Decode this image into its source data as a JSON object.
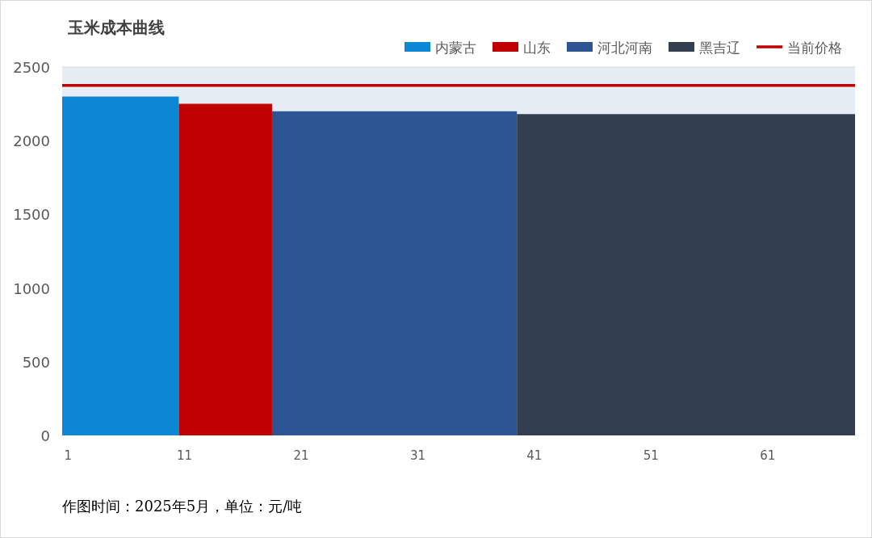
{
  "chart_data": {
    "type": "area",
    "title": "玉米成本曲线",
    "xlim": [
      0.5,
      68.5
    ],
    "xticks": [
      1,
      11,
      21,
      31,
      41,
      51,
      61
    ],
    "ylim": [
      0,
      2500
    ],
    "yticks": [
      0,
      500,
      1000,
      1500,
      2000,
      2500
    ],
    "legend": "top right",
    "grid": false,
    "series": [
      {
        "name": "内蒙古",
        "color": "#0b87d6",
        "x": [
          0.5,
          10.5
        ],
        "values": [
          2300,
          2300
        ]
      },
      {
        "name": "山东",
        "color": "#c00000",
        "x": [
          10.5,
          18.5
        ],
        "values": [
          2250,
          2250
        ]
      },
      {
        "name": "河北河南",
        "color": "#2e5593",
        "x": [
          18.5,
          39.5
        ],
        "values": [
          2200,
          2200
        ]
      },
      {
        "name": "黑吉辽",
        "color": "#333f50",
        "x": [
          39.5,
          68.5
        ],
        "values": [
          2180,
          2180
        ]
      },
      {
        "name": "当前价格",
        "type": "line",
        "line_style": "solid",
        "color": "#c00000",
        "x": [
          0.5,
          68.5
        ],
        "values": [
          2375,
          2375
        ]
      }
    ],
    "annotations": [
      "作图时间：2025年5月，单位：元/吨"
    ]
  }
}
